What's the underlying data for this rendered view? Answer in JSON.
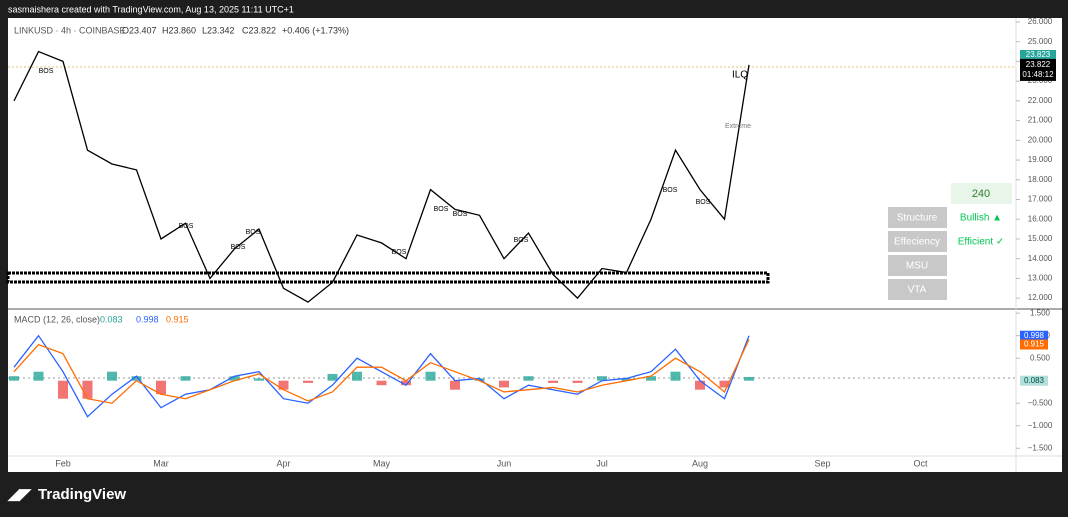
{
  "header": {
    "credit": "sasmaishera created with TradingView.com, Aug 13, 2025 11:11 UTC+1",
    "brand": "TradingView"
  },
  "panel": {
    "timeframe": "240",
    "rows": [
      {
        "label": "Structure",
        "value": "Bullish ▲"
      },
      {
        "label": "Effeciency",
        "value": "Efficient ✓"
      },
      {
        "label": "MSU"
      },
      {
        "label": "VTA"
      }
    ]
  },
  "chart_data": [
    {
      "type": "line",
      "title": "LINKUSD · 4h · COINBASE",
      "ohlc": [
        "O23.407",
        "H23.860",
        "L23.342",
        "C23.822",
        "+0.406 (+1.73%)"
      ],
      "categories": [
        null,
        null,
        "Feb",
        null,
        null,
        null,
        "Mar",
        null,
        null,
        null,
        null,
        "Apr",
        null,
        null,
        null,
        "May",
        null,
        null,
        null,
        null,
        "Jun",
        null,
        null,
        null,
        "Jul",
        null,
        null,
        null,
        "Aug",
        null,
        null,
        null,
        null,
        "Sep",
        null,
        null,
        null,
        "Oct",
        null,
        null,
        null
      ],
      "values": [
        22.0,
        24.5,
        24.0,
        19.5,
        18.8,
        18.5,
        15.0,
        15.8,
        13.0,
        14.5,
        15.5,
        12.5,
        11.8,
        12.8,
        15.2,
        14.8,
        14.0,
        17.5,
        16.5,
        16.2,
        14.0,
        15.3,
        13.2,
        12.0,
        13.5,
        13.3,
        16.0,
        19.5,
        17.5,
        16.0,
        23.822,
        null,
        null,
        null,
        null,
        null,
        null,
        null,
        null,
        null,
        null
      ],
      "color": "#000000",
      "ylim": [
        11.5,
        26.2
      ],
      "yticks": [
        {
          "value": 26,
          "label": "26.000"
        },
        {
          "value": 25,
          "label": "25.000"
        },
        {
          "value": 24,
          "label": "24.000"
        },
        {
          "value": 23,
          "label": "23.000"
        },
        {
          "value": 22,
          "label": "22.000"
        },
        {
          "value": 21,
          "label": "21.000"
        },
        {
          "value": 20,
          "label": "20.000"
        },
        {
          "value": 19,
          "label": "19.000"
        },
        {
          "value": 18,
          "label": "18.000"
        },
        {
          "value": 17,
          "label": "17.000"
        },
        {
          "value": 16,
          "label": "16.000"
        },
        {
          "value": 15,
          "label": "15.000"
        },
        {
          "value": 14,
          "label": "14.000"
        },
        {
          "value": 13,
          "label": "13.000"
        },
        {
          "value": 12,
          "label": "12.000"
        }
      ],
      "price_tags": [
        "23.823",
        "01:48:12"
      ],
      "annotations": [
        "BOS",
        "BOS",
        "BOS",
        "BOS",
        "BOS",
        "BOS",
        "BOS",
        "BOS",
        "BOS",
        "BOS",
        "ILQ",
        "Extreme"
      ]
    },
    {
      "type": "macd",
      "title": "MACD (12, 26, close)",
      "series": [
        {
          "color": "#2962ff",
          "values": [
            0.3,
            1.0,
            0.2,
            -0.8,
            -0.3,
            0.1,
            -0.6,
            -0.3,
            -0.2,
            0.1,
            0.2,
            -0.4,
            -0.5,
            -0.1,
            0.5,
            0.2,
            -0.1,
            0.6,
            0.0,
            0.05,
            -0.4,
            -0.1,
            -0.2,
            -0.3,
            0.0,
            0.05,
            0.2,
            0.7,
            0.0,
            -0.4,
            0.998,
            null,
            null,
            null,
            null,
            null,
            null,
            null,
            null,
            null,
            null
          ]
        },
        {
          "color": "#ff6d00",
          "values": [
            0.2,
            0.8,
            0.6,
            -0.4,
            -0.5,
            0.0,
            -0.3,
            -0.4,
            -0.2,
            0.0,
            0.15,
            -0.2,
            -0.45,
            -0.25,
            0.3,
            0.3,
            0.0,
            0.4,
            0.2,
            0.0,
            -0.25,
            -0.2,
            -0.15,
            -0.25,
            -0.1,
            0.0,
            0.1,
            0.5,
            0.2,
            -0.25,
            0.915,
            null,
            null,
            null,
            null,
            null,
            null,
            null,
            null,
            null,
            null
          ]
        },
        {
          "colors": [
            "#26a69a",
            "#ef5350"
          ],
          "values": [
            0.1,
            0.2,
            -0.4,
            -0.4,
            0.2,
            0.1,
            -0.3,
            0.1,
            0.0,
            0.1,
            0.05,
            -0.2,
            -0.05,
            0.15,
            0.2,
            -0.1,
            -0.1,
            0.2,
            -0.2,
            0.05,
            -0.15,
            0.1,
            -0.05,
            -0.05,
            0.1,
            0.05,
            0.1,
            0.2,
            -0.2,
            -0.15,
            0.083,
            null,
            null,
            null,
            null,
            null,
            null,
            null,
            null,
            null,
            null
          ]
        }
      ],
      "ylim": [
        -1.65,
        1.57
      ],
      "yticks": [
        {
          "value": 1.5,
          "label": "1.500"
        },
        {
          "value": 1,
          "label": "1.000"
        },
        {
          "value": 0.5,
          "label": "0.500"
        },
        {
          "value": -0.5,
          "label": "−0.500"
        },
        {
          "value": -1,
          "label": "−1.000"
        },
        {
          "value": -1.5,
          "label": "−1.500"
        }
      ]
    }
  ]
}
